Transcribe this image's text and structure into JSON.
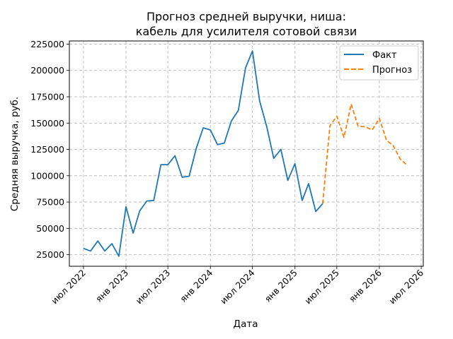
{
  "chart_data": {
    "type": "line",
    "title_lines": [
      "Прогноз средней выручки, ниша:",
      "кабель для усилителя сотовой связи"
    ],
    "xlabel": "Дата",
    "ylabel": "Средняя выручка, руб.",
    "ylim": [
      14000,
      228000
    ],
    "xlim": [
      "2022-05-01",
      "2026-07-10"
    ],
    "grid": true,
    "legend_position": "top-right",
    "x_ticks": [
      {
        "date": "2022-07-01",
        "label": "июл 2022"
      },
      {
        "date": "2023-01-01",
        "label": "янв 2023"
      },
      {
        "date": "2023-07-01",
        "label": "июл 2023"
      },
      {
        "date": "2024-01-01",
        "label": "янв 2024"
      },
      {
        "date": "2024-07-01",
        "label": "июл 2024"
      },
      {
        "date": "2025-01-01",
        "label": "янв 2025"
      },
      {
        "date": "2025-07-01",
        "label": "июл 2025"
      },
      {
        "date": "2026-01-01",
        "label": "янв 2026"
      },
      {
        "date": "2026-07-01",
        "label": "июл 2026"
      }
    ],
    "y_ticks": [
      {
        "value": 25000,
        "label": "25000"
      },
      {
        "value": 50000,
        "label": "50000"
      },
      {
        "value": 75000,
        "label": "75000"
      },
      {
        "value": 100000,
        "label": "100000"
      },
      {
        "value": 125000,
        "label": "125000"
      },
      {
        "value": 150000,
        "label": "150000"
      },
      {
        "value": 175000,
        "label": "175000"
      },
      {
        "value": 200000,
        "label": "200000"
      },
      {
        "value": 225000,
        "label": "225000"
      }
    ],
    "series": [
      {
        "name": "Факт",
        "color": "#1f77b4",
        "style": "solid",
        "points": [
          {
            "x": "2022-07-01",
            "y": 31000
          },
          {
            "x": "2022-08-01",
            "y": 28500
          },
          {
            "x": "2022-09-01",
            "y": 38000
          },
          {
            "x": "2022-10-01",
            "y": 28500
          },
          {
            "x": "2022-11-01",
            "y": 35500
          },
          {
            "x": "2022-12-01",
            "y": 23500
          },
          {
            "x": "2023-01-01",
            "y": 70500
          },
          {
            "x": "2023-02-01",
            "y": 45500
          },
          {
            "x": "2023-03-01",
            "y": 66500
          },
          {
            "x": "2023-04-01",
            "y": 76000
          },
          {
            "x": "2023-05-01",
            "y": 76500
          },
          {
            "x": "2023-06-01",
            "y": 110500
          },
          {
            "x": "2023-07-01",
            "y": 110500
          },
          {
            "x": "2023-08-01",
            "y": 119000
          },
          {
            "x": "2023-09-01",
            "y": 98500
          },
          {
            "x": "2023-10-01",
            "y": 99500
          },
          {
            "x": "2023-11-01",
            "y": 126000
          },
          {
            "x": "2023-12-01",
            "y": 145500
          },
          {
            "x": "2024-01-01",
            "y": 143500
          },
          {
            "x": "2024-02-01",
            "y": 129500
          },
          {
            "x": "2024-03-01",
            "y": 131000
          },
          {
            "x": "2024-04-01",
            "y": 152000
          },
          {
            "x": "2024-05-01",
            "y": 162000
          },
          {
            "x": "2024-06-01",
            "y": 202500
          },
          {
            "x": "2024-07-01",
            "y": 218500
          },
          {
            "x": "2024-08-01",
            "y": 171000
          },
          {
            "x": "2024-09-01",
            "y": 146500
          },
          {
            "x": "2024-10-01",
            "y": 116500
          },
          {
            "x": "2024-11-01",
            "y": 125000
          },
          {
            "x": "2024-12-01",
            "y": 95500
          },
          {
            "x": "2025-01-01",
            "y": 111500
          },
          {
            "x": "2025-02-01",
            "y": 76500
          },
          {
            "x": "2025-03-01",
            "y": 92500
          },
          {
            "x": "2025-04-01",
            "y": 66000
          },
          {
            "x": "2025-05-01",
            "y": 73500
          }
        ]
      },
      {
        "name": "Прогноз",
        "color": "#ff7f0e",
        "style": "dashed",
        "points": [
          {
            "x": "2025-05-01",
            "y": 73500
          },
          {
            "x": "2025-06-01",
            "y": 147500
          },
          {
            "x": "2025-07-01",
            "y": 156500
          },
          {
            "x": "2025-08-01",
            "y": 136500
          },
          {
            "x": "2025-09-01",
            "y": 168000
          },
          {
            "x": "2025-10-01",
            "y": 147000
          },
          {
            "x": "2025-11-01",
            "y": 146500
          },
          {
            "x": "2025-12-01",
            "y": 143500
          },
          {
            "x": "2026-01-01",
            "y": 154500
          },
          {
            "x": "2026-02-01",
            "y": 133500
          },
          {
            "x": "2026-03-01",
            "y": 129000
          },
          {
            "x": "2026-04-01",
            "y": 116000
          },
          {
            "x": "2026-05-01",
            "y": 110000
          }
        ]
      }
    ]
  }
}
